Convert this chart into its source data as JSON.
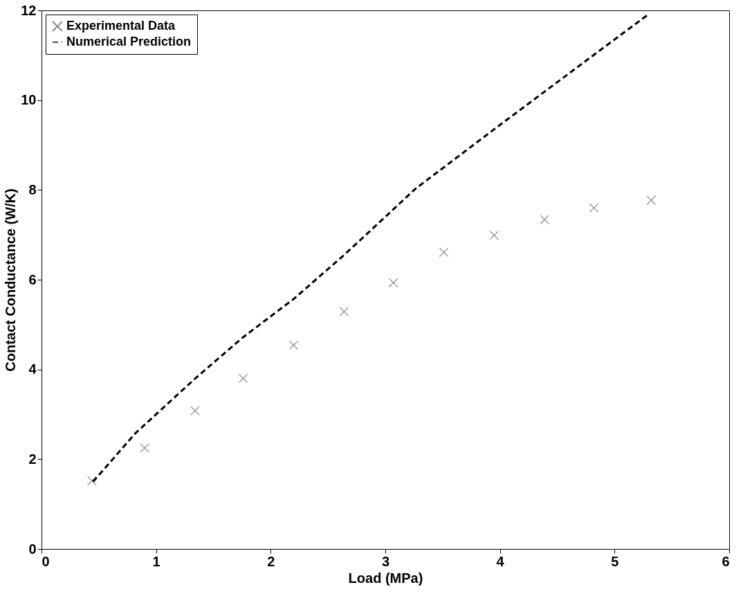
{
  "chart_data": {
    "type": "scatter",
    "xlabel": "Load (MPa)",
    "ylabel": "Contact Conductance (W/K)",
    "xlim": [
      0,
      6
    ],
    "xticks": [
      0,
      1,
      2,
      3,
      4,
      5,
      6
    ],
    "ylim": [
      0,
      12
    ],
    "yticks": [
      0,
      2,
      4,
      6,
      8,
      10,
      12
    ],
    "grid": false,
    "legend": "top left",
    "series": [
      {
        "name": "Experimental Data",
        "type": "scatter",
        "marker": "cross",
        "color": "#555555",
        "x": [
          0.44,
          0.9,
          1.34,
          1.76,
          2.2,
          2.64,
          3.07,
          3.51,
          3.95,
          4.39,
          4.82,
          5.32
        ],
        "values": [
          1.52,
          2.25,
          3.08,
          3.8,
          4.54,
          5.29,
          5.93,
          6.61,
          6.99,
          7.34,
          7.6,
          7.77
        ]
      },
      {
        "name": "Numerical Prediction",
        "type": "line",
        "line_style": "dashed",
        "color": "#000000",
        "x": [
          0.45,
          0.82,
          1.35,
          1.76,
          2.2,
          2.64,
          3.0,
          3.26,
          3.98,
          4.71,
          5.3
        ],
        "values": [
          1.5,
          2.58,
          3.82,
          4.72,
          5.57,
          6.55,
          7.4,
          8.02,
          9.41,
          10.8,
          11.92
        ]
      }
    ]
  }
}
